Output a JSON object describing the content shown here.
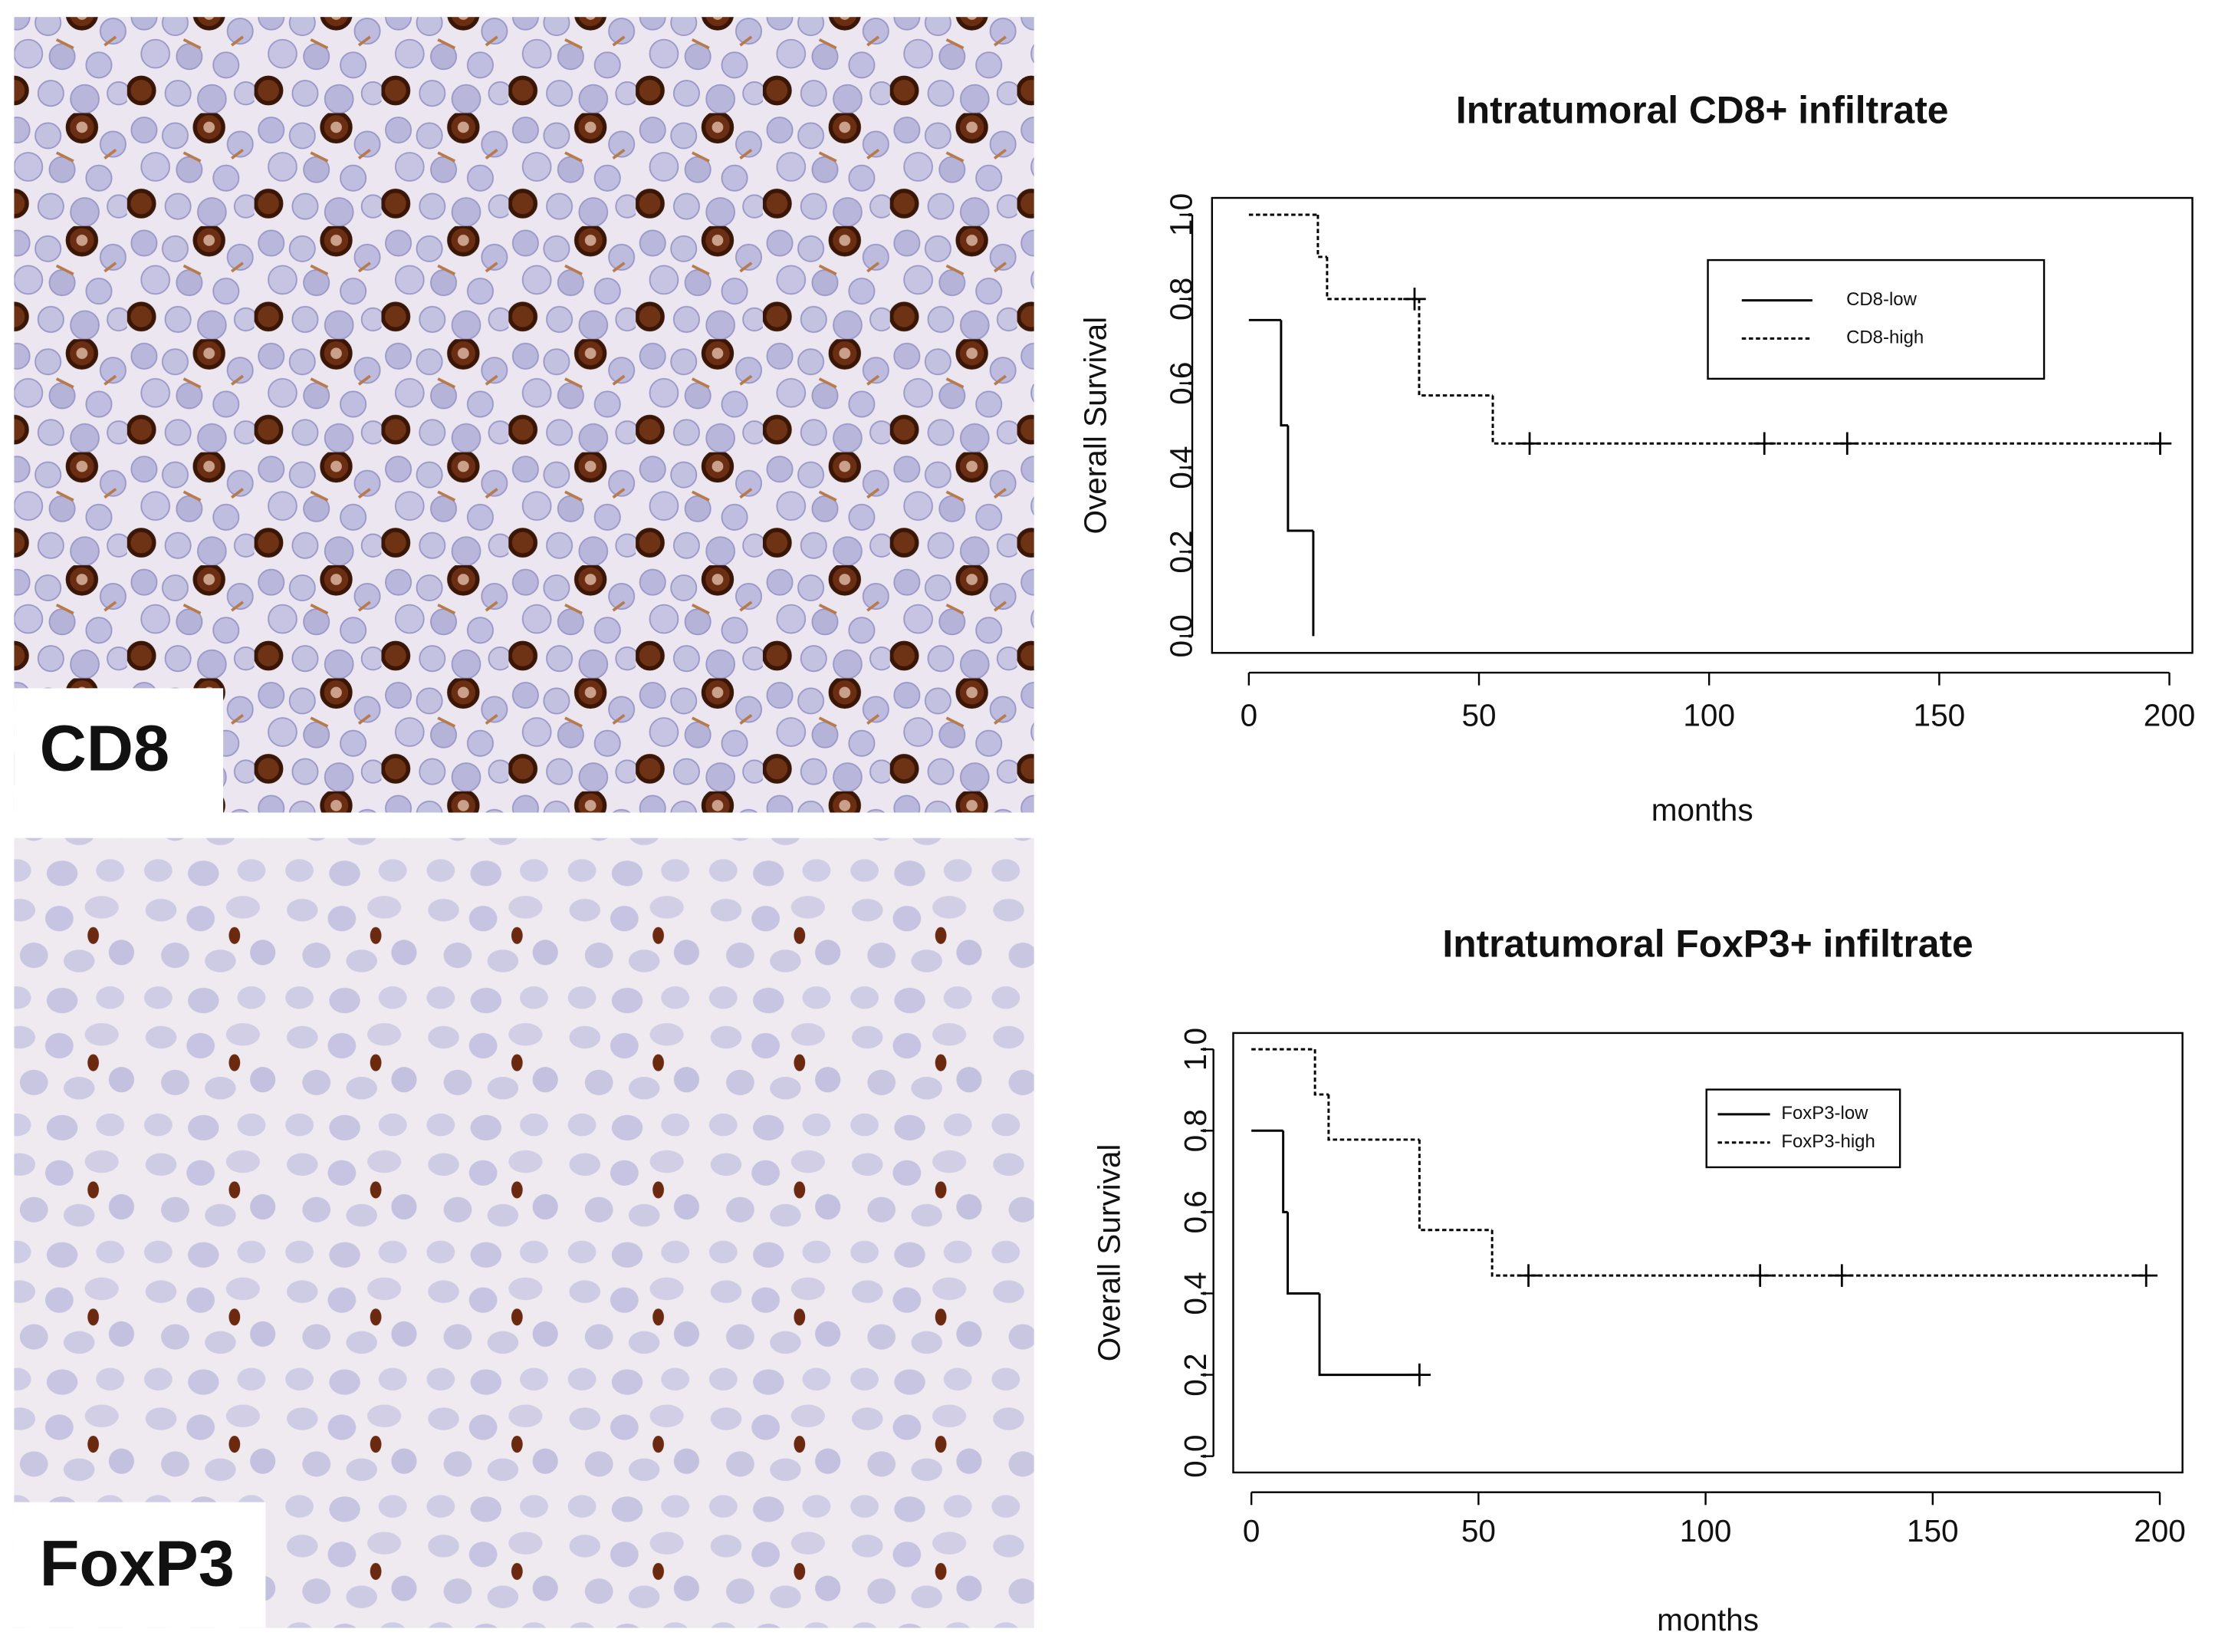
{
  "panels": [
    {
      "label": "CD8"
    },
    {
      "label": "FoxP3"
    }
  ],
  "chart_data": [
    {
      "type": "step",
      "title": "Intratumoral CD8+ infiltrate",
      "xlabel": "months",
      "ylabel": "Overall Survival",
      "xlim": [
        -8,
        205
      ],
      "ylim": [
        -0.04,
        1.04
      ],
      "xticks": [
        0,
        50,
        100,
        150,
        200
      ],
      "yticks": [
        {
          "value": 0,
          "label": "0.0"
        },
        0.2,
        0.4,
        0.6,
        0.8,
        {
          "value": 1,
          "label": "1.0"
        }
      ],
      "legend": "upper-right",
      "series": [
        {
          "name": "CD8-low",
          "color": "#000000",
          "linestyle": "solid",
          "x": [
            0,
            7,
            8.5,
            14
          ],
          "values": [
            0.75,
            0.5,
            0.25,
            0
          ],
          "censored": []
        },
        {
          "name": "CD8-high",
          "color": "#000000",
          "linestyle": "dotted",
          "x": [
            0,
            15,
            17,
            37,
            53
          ],
          "values": [
            1,
            0.9,
            0.8,
            0.571,
            0.457
          ],
          "censored": [
            36,
            61,
            112,
            130,
            198
          ]
        }
      ]
    },
    {
      "type": "step",
      "title": "Intratumoral FoxP3+ infiltrate",
      "xlabel": "months",
      "ylabel": "Overall Survival",
      "xlim": [
        -4,
        205
      ],
      "ylim": [
        -0.04,
        1.04
      ],
      "xticks": [
        0,
        50,
        100,
        150,
        200
      ],
      "yticks": [
        {
          "value": 0,
          "label": "0.0"
        },
        0.2,
        0.4,
        0.6,
        0.8,
        {
          "value": 1,
          "label": "1.0"
        }
      ],
      "legend": "upper-right",
      "series": [
        {
          "name": "FoxP3-low",
          "color": "#000000",
          "linestyle": "solid",
          "x": [
            0,
            7,
            8,
            15
          ],
          "values": [
            0.8,
            0.6,
            0.4,
            0.2
          ],
          "censored": [
            37
          ]
        },
        {
          "name": "FoxP3-high",
          "color": "#000000",
          "linestyle": "dotted",
          "x": [
            0,
            14,
            17,
            37,
            53
          ],
          "values": [
            1,
            0.889,
            0.778,
            0.556,
            0.444
          ],
          "censored": [
            61,
            112,
            130,
            197
          ]
        }
      ]
    }
  ]
}
